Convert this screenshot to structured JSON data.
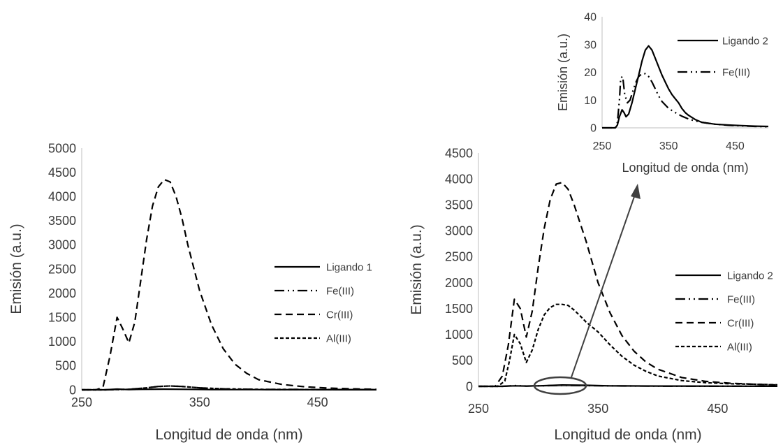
{
  "colors": {
    "series": "#000000",
    "axis": "#bfbfbf",
    "text": "#3a3a3a",
    "annotation": "#404040"
  },
  "chart_data": [
    {
      "id": "left",
      "type": "line",
      "xlabel": "Longitud de onda (nm)",
      "ylabel": "Emisión (a.u.)",
      "xlim": [
        250,
        500
      ],
      "ylim": [
        0,
        5000
      ],
      "xticks": [
        250,
        350,
        450
      ],
      "yticks": [
        0,
        500,
        1000,
        1500,
        2000,
        2500,
        3000,
        3500,
        4000,
        4500,
        5000
      ],
      "legend_position": "right",
      "series": [
        {
          "name": "Ligando 1",
          "dash": "solid",
          "x": [
            250,
            270,
            280,
            290,
            300,
            320,
            340,
            360,
            400,
            450,
            500
          ],
          "y": [
            0,
            0,
            15,
            5,
            10,
            15,
            10,
            5,
            5,
            3,
            2
          ]
        },
        {
          "name": "Fe(III)",
          "dash": "dashdotdot",
          "x": [
            250,
            270,
            290,
            305,
            315,
            325,
            335,
            350,
            370,
            400,
            500
          ],
          "y": [
            0,
            0,
            10,
            40,
            70,
            80,
            70,
            40,
            20,
            8,
            3
          ]
        },
        {
          "name": "Cr(III)",
          "dash": "longdash",
          "x": [
            250,
            262,
            268,
            274,
            280,
            285,
            290,
            295,
            300,
            305,
            310,
            315,
            320,
            325,
            330,
            335,
            340,
            350,
            360,
            370,
            380,
            390,
            400,
            420,
            440,
            460,
            480,
            500
          ],
          "y": [
            0,
            0,
            50,
            700,
            1500,
            1250,
            970,
            1400,
            2250,
            3100,
            3800,
            4200,
            4350,
            4300,
            4000,
            3550,
            3000,
            2050,
            1350,
            850,
            530,
            340,
            210,
            110,
            60,
            35,
            20,
            10
          ]
        },
        {
          "name": "Al(III)",
          "dash": "shortdash",
          "x": [
            250,
            270,
            290,
            305,
            315,
            325,
            335,
            350,
            370,
            400,
            500
          ],
          "y": [
            0,
            0,
            10,
            40,
            70,
            80,
            70,
            40,
            20,
            8,
            3
          ]
        }
      ]
    },
    {
      "id": "right",
      "type": "line",
      "xlabel": "Longitud de onda (nm)",
      "ylabel": "Emisión (a.u.)",
      "xlim": [
        250,
        500
      ],
      "ylim": [
        0,
        4500
      ],
      "xticks": [
        250,
        350,
        450
      ],
      "yticks": [
        0,
        500,
        1000,
        1500,
        2000,
        2500,
        3000,
        3500,
        4000,
        4500
      ],
      "legend_position": "right",
      "series": [
        {
          "name": "Ligando 2",
          "dash": "solid",
          "x": [
            250,
            270,
            280,
            290,
            300,
            320,
            340,
            360,
            400,
            450,
            500
          ],
          "y": [
            0,
            0,
            10,
            5,
            10,
            25,
            20,
            10,
            5,
            3,
            2
          ]
        },
        {
          "name": "Fe(III)",
          "dash": "dashdotdot",
          "x": [
            250,
            270,
            280,
            290,
            300,
            320,
            340,
            360,
            400,
            450,
            500
          ],
          "y": [
            0,
            0,
            15,
            5,
            10,
            20,
            15,
            8,
            4,
            2,
            1
          ]
        },
        {
          "name": "Cr(III)",
          "dash": "longdash",
          "x": [
            250,
            264,
            270,
            275,
            280,
            285,
            290,
            295,
            300,
            305,
            310,
            315,
            320,
            325,
            330,
            335,
            340,
            350,
            360,
            370,
            380,
            390,
            400,
            420,
            440,
            460,
            480,
            500
          ],
          "y": [
            0,
            0,
            200,
            800,
            1680,
            1500,
            950,
            1450,
            2300,
            3050,
            3600,
            3900,
            3930,
            3800,
            3500,
            3150,
            2800,
            2000,
            1420,
            980,
            680,
            470,
            330,
            170,
            95,
            60,
            40,
            25
          ]
        },
        {
          "name": "Al(III)",
          "dash": "shortdash",
          "x": [
            250,
            266,
            272,
            276,
            280,
            285,
            290,
            295,
            300,
            305,
            310,
            315,
            320,
            325,
            330,
            335,
            340,
            350,
            360,
            370,
            380,
            390,
            400,
            420,
            440,
            460,
            480,
            500
          ],
          "y": [
            0,
            0,
            100,
            500,
            1000,
            820,
            460,
            700,
            1100,
            1380,
            1520,
            1580,
            1580,
            1560,
            1470,
            1360,
            1240,
            1050,
            800,
            580,
            410,
            290,
            200,
            110,
            70,
            50,
            40,
            30
          ]
        }
      ]
    },
    {
      "id": "inset",
      "type": "line",
      "xlabel": "Longitud de onda (nm)",
      "ylabel": "Emisión (a.u.)",
      "xlim": [
        250,
        500
      ],
      "ylim": [
        0,
        40
      ],
      "xticks": [
        250,
        350,
        450
      ],
      "yticks": [
        0,
        10,
        20,
        30,
        40
      ],
      "legend_position": "right",
      "series": [
        {
          "name": "Ligando 2",
          "dash": "solid",
          "x": [
            250,
            265,
            270,
            273,
            276,
            280,
            283,
            286,
            290,
            295,
            300,
            305,
            310,
            315,
            320,
            325,
            330,
            335,
            340,
            345,
            350,
            355,
            360,
            365,
            370,
            375,
            380,
            390,
            400,
            420,
            440,
            460,
            480,
            500
          ],
          "y": [
            0,
            0,
            0,
            1,
            4,
            6.5,
            5.5,
            4,
            5,
            9,
            14,
            19,
            24,
            28,
            29.5,
            28,
            25,
            22,
            19,
            16.5,
            14,
            12,
            10.5,
            9,
            7,
            5.5,
            4.5,
            3,
            2,
            1.3,
            1.0,
            0.8,
            0.6,
            0.5
          ]
        },
        {
          "name": "Fe(III)",
          "dash": "dashdotdot",
          "x": [
            250,
            265,
            270,
            273,
            276,
            278,
            281,
            284,
            288,
            292,
            296,
            300,
            305,
            310,
            315,
            320,
            325,
            330,
            335,
            340,
            350,
            360,
            370,
            380,
            390,
            400,
            420,
            440,
            460,
            480,
            500
          ],
          "y": [
            0,
            0,
            0,
            2,
            10,
            18,
            18.5,
            12,
            9,
            10,
            13,
            16,
            18.5,
            19.5,
            19.5,
            18.5,
            16.5,
            14,
            11.5,
            9.5,
            7,
            5.5,
            4.2,
            3.2,
            2.5,
            2,
            1.3,
            0.9,
            0.7,
            0.5,
            0.4
          ]
        }
      ]
    }
  ]
}
